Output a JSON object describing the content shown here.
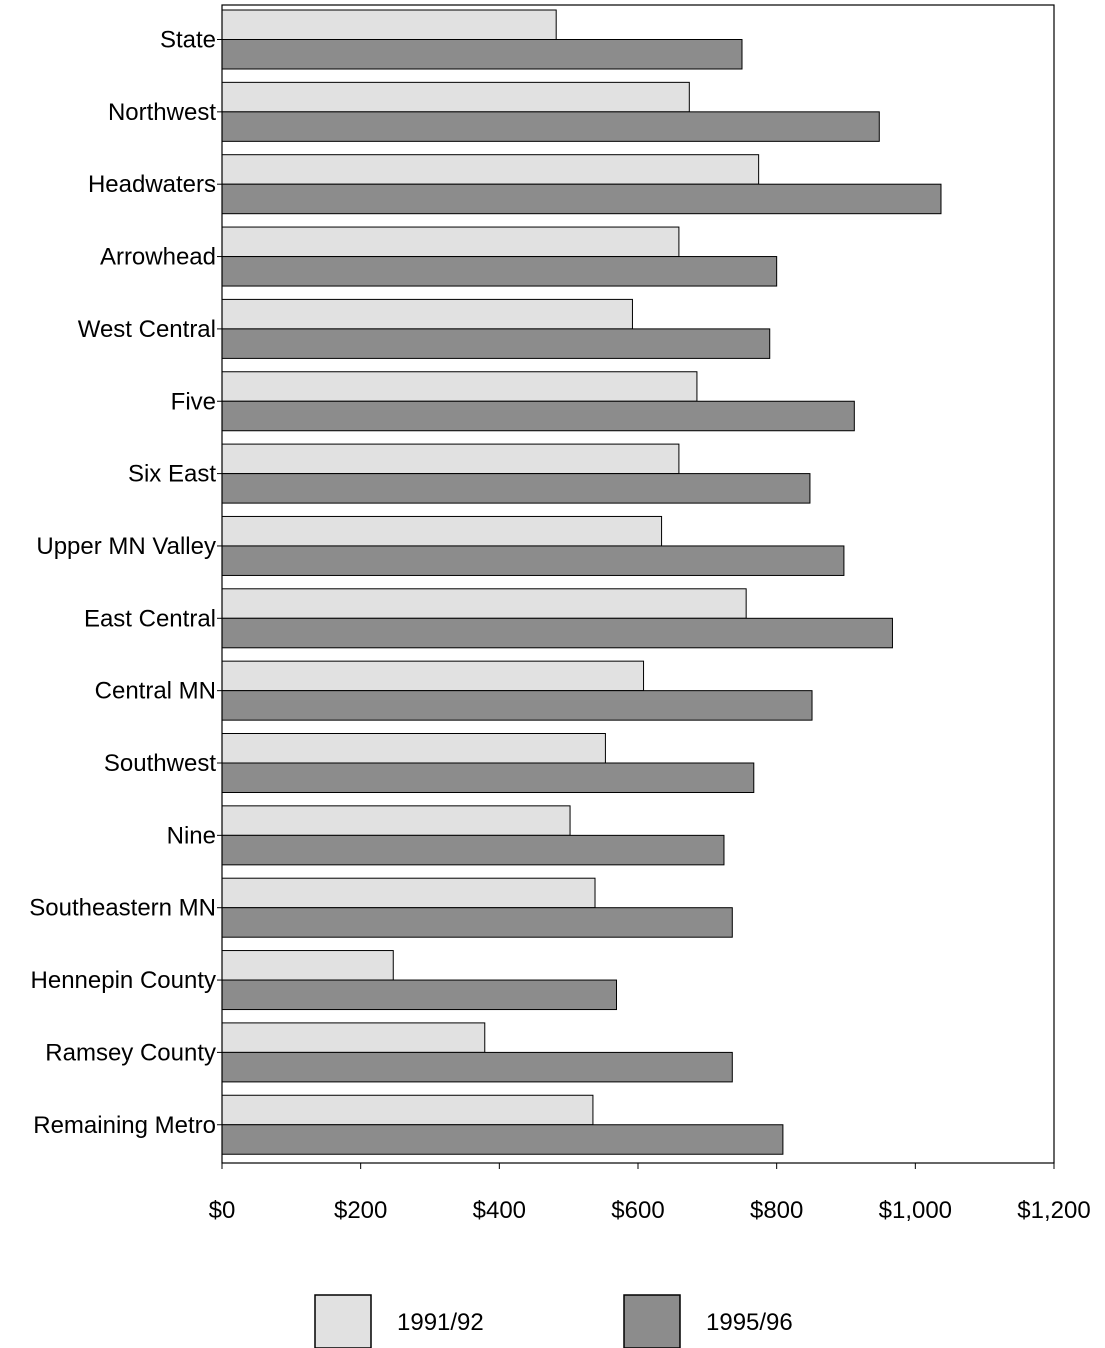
{
  "chart_data": {
    "type": "bar",
    "orientation": "horizontal",
    "categories": [
      "State",
      "Northwest",
      "Headwaters",
      "Arrowhead",
      "West Central",
      "Five",
      "Six East",
      "Upper MN Valley",
      "East Central",
      "Central MN",
      "Southwest",
      "Nine",
      "Southeastern MN",
      "Hennepin County",
      "Ramsey County",
      "Remaining Metro"
    ],
    "series": [
      {
        "name": "1991/92",
        "color": "#e1e1e1",
        "values": [
          482,
          674,
          774,
          659,
          592,
          685,
          659,
          634,
          756,
          608,
          553,
          502,
          538,
          247,
          379,
          535
        ]
      },
      {
        "name": "1995/96",
        "color": "#8c8c8c",
        "values": [
          750,
          948,
          1037,
          800,
          790,
          912,
          848,
          897,
          967,
          851,
          767,
          724,
          736,
          569,
          736,
          809
        ]
      }
    ],
    "xlim": [
      0,
      1200
    ],
    "xticks": [
      0,
      200,
      400,
      600,
      800,
      1000,
      1200
    ],
    "xtick_labels": [
      "$0",
      "$200",
      "$400",
      "$600",
      "$800",
      "$1,000",
      "$1,200"
    ],
    "legend_position": "bottom-center",
    "grid": false
  }
}
